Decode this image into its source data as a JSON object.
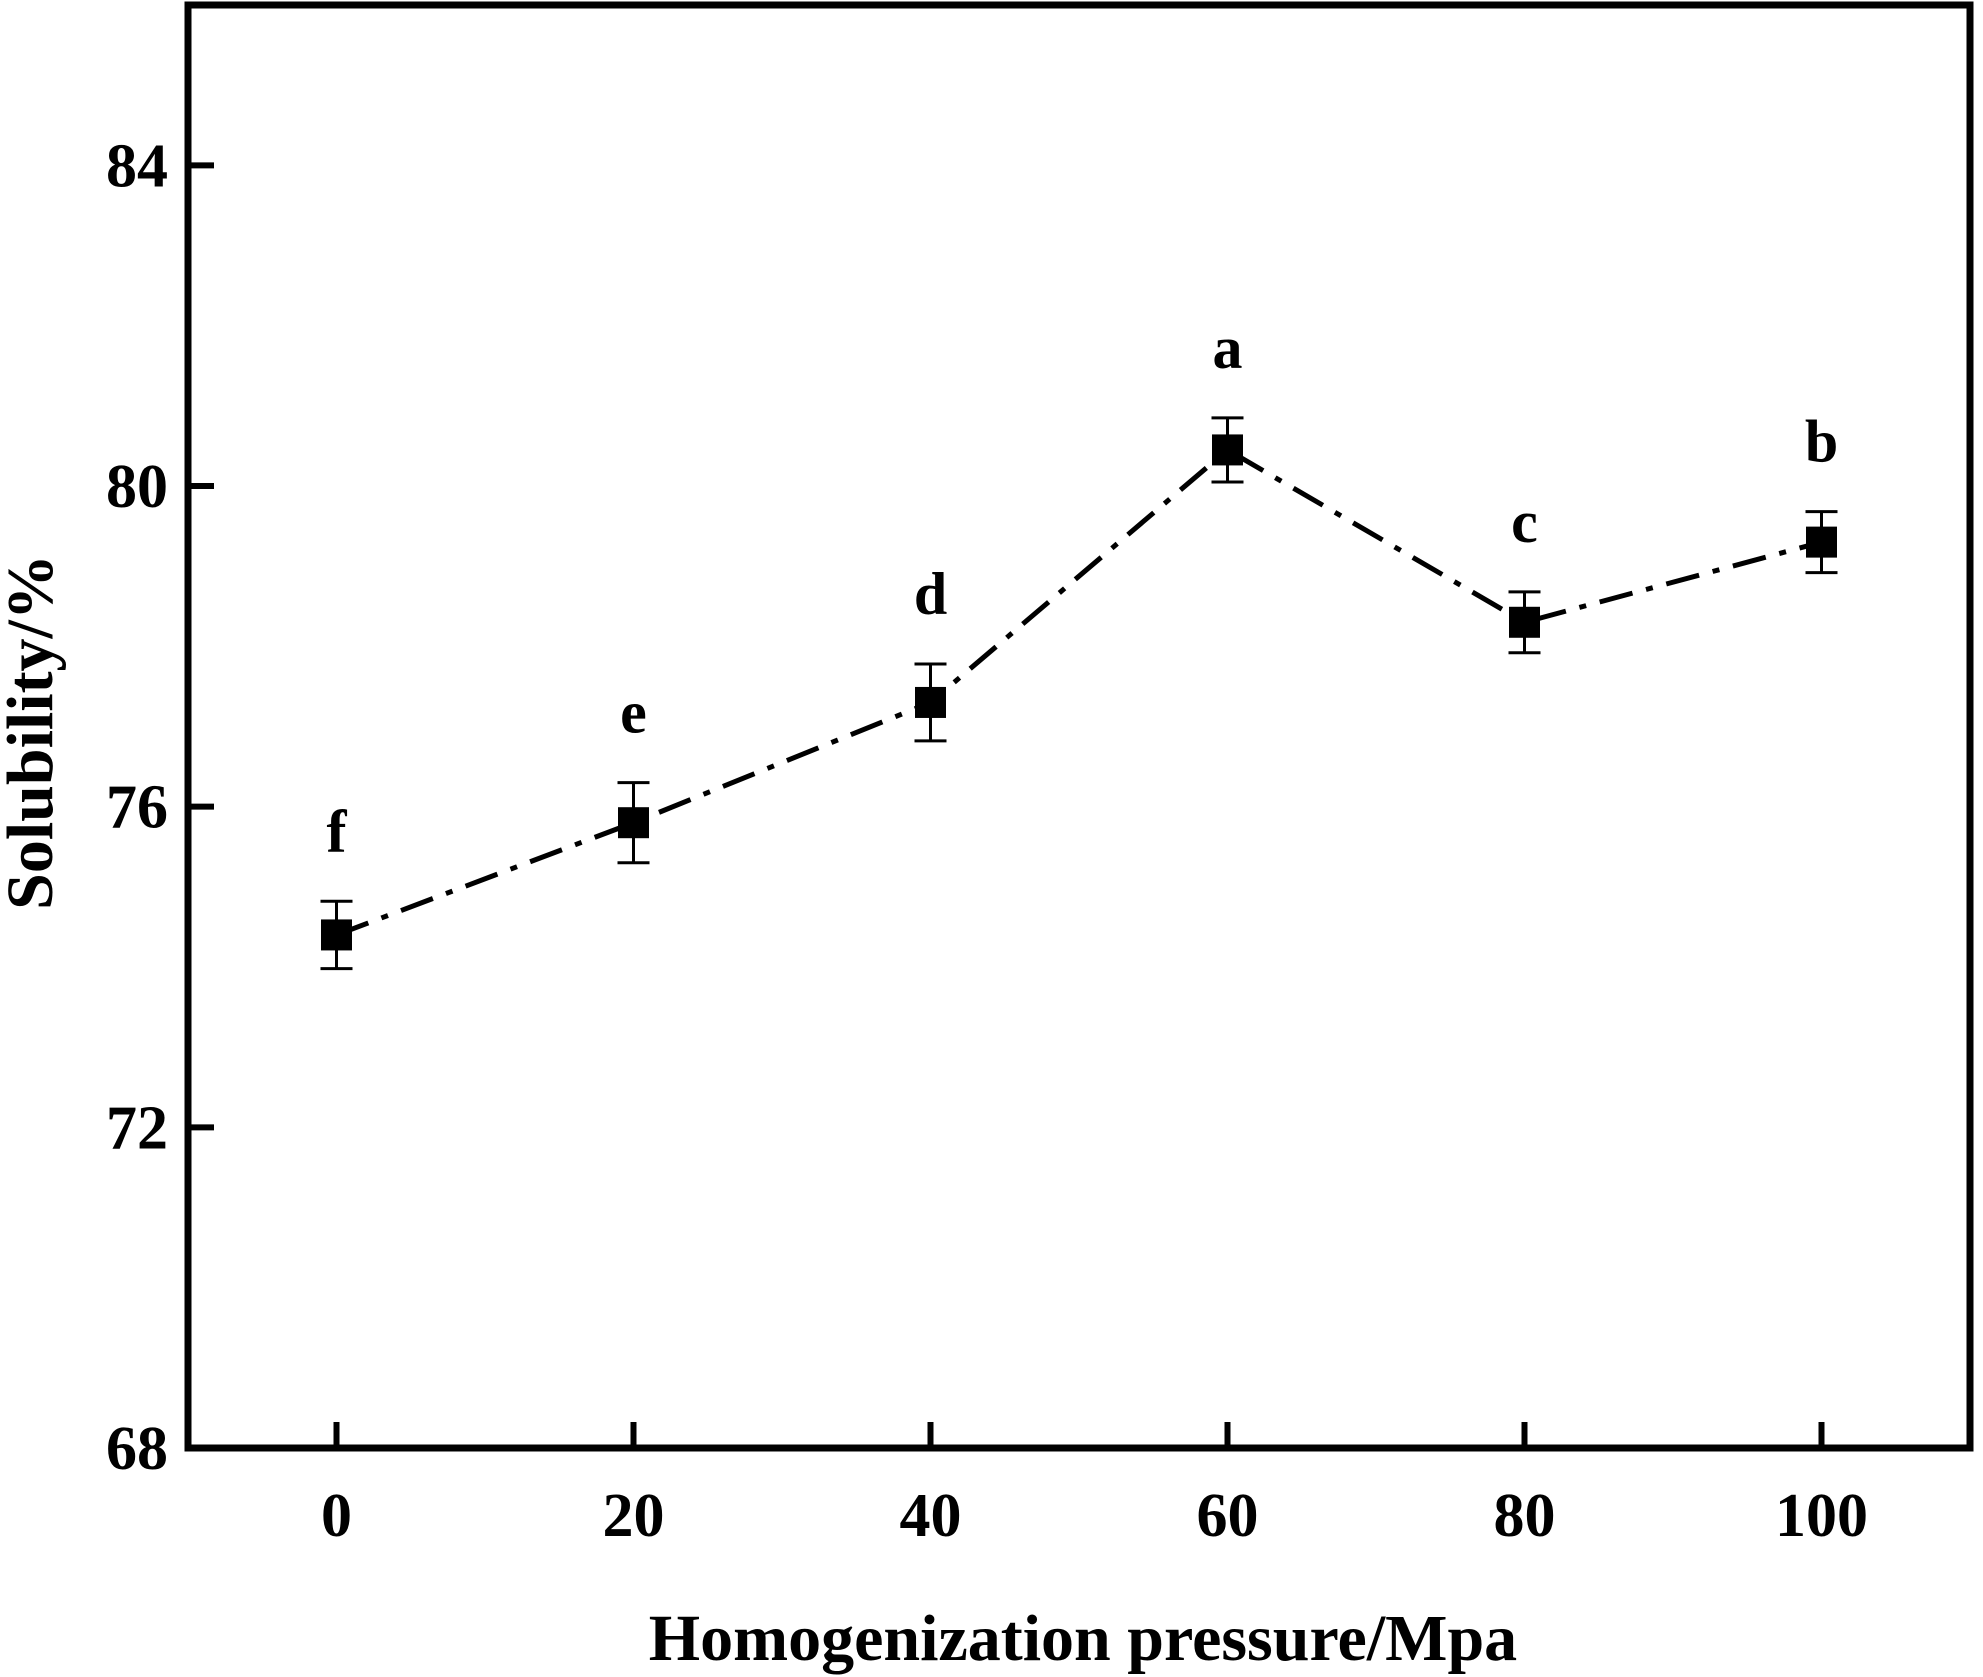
{
  "chart_data": {
    "type": "line",
    "title": "",
    "xlabel": "Homogenization pressure/Mpa",
    "ylabel": "Solubility/%",
    "xlim": [
      -10,
      110
    ],
    "ylim": [
      68,
      86
    ],
    "x_ticks": [
      0,
      20,
      40,
      60,
      80,
      100
    ],
    "y_ticks": [
      68,
      72,
      76,
      80,
      84
    ],
    "grid": false,
    "legend": "none",
    "marker": "square",
    "line_style": "dash-dot",
    "color": "#000000",
    "series": [
      {
        "x": [
          0,
          20,
          40,
          60,
          80,
          100
        ],
        "y": [
          74.4,
          75.8,
          77.3,
          80.45,
          78.3,
          79.3
        ],
        "error": [
          0.42,
          0.5,
          0.48,
          0.4,
          0.38,
          0.38
        ],
        "annotations": [
          "f",
          "e",
          "d",
          "a",
          "c",
          "b"
        ]
      }
    ]
  }
}
